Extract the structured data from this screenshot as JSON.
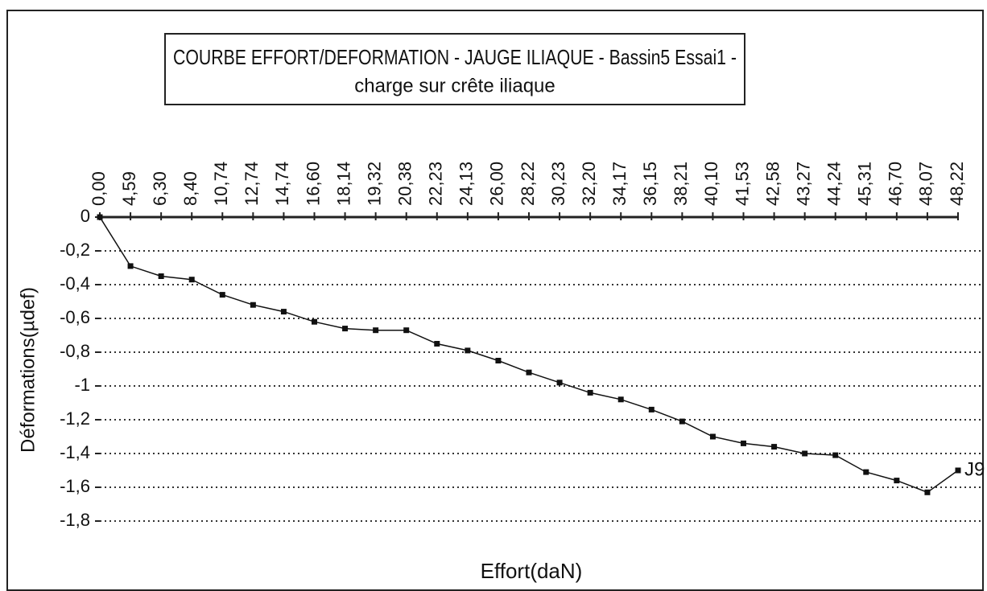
{
  "chart_data": {
    "type": "line",
    "title": "COURBE EFFORT/DEFORMATION - JAUGE ILIAQUE - Bassin5 Essai1 -",
    "subtitle": "charge sur crête iliaque",
    "x_label": "Effort(daN)",
    "y_label": "Déformations(µdef)",
    "categories": [
      "0,00",
      "4,59",
      "6,30",
      "8,40",
      "10,74",
      "12,74",
      "14,74",
      "16,60",
      "18,14",
      "19,32",
      "20,38",
      "22,23",
      "24,13",
      "26,00",
      "28,22",
      "30,23",
      "32,20",
      "34,17",
      "36,15",
      "38,21",
      "40,10",
      "41,53",
      "42,58",
      "43,27",
      "44,24",
      "45,31",
      "46,70",
      "48,07",
      "48,22"
    ],
    "series": [
      {
        "name": "J9",
        "color": "#111111",
        "values": [
          0,
          -0.29,
          -0.35,
          -0.37,
          -0.46,
          -0.52,
          -0.56,
          -0.62,
          -0.66,
          -0.67,
          -0.67,
          -0.75,
          -0.79,
          -0.85,
          -0.92,
          -0.98,
          -1.04,
          -1.08,
          -1.14,
          -1.21,
          -1.3,
          -1.34,
          -1.36,
          -1.4,
          -1.41,
          -1.51,
          -1.56,
          -1.63,
          -1.5
        ]
      }
    ],
    "ylim": [
      -1.8,
      0
    ],
    "yticks": [
      0,
      {
        "value": -0.2,
        "label": "-0,2"
      },
      {
        "value": -0.4,
        "label": "-0,4"
      },
      {
        "value": -0.6,
        "label": "-0,6"
      },
      {
        "value": -0.8,
        "label": "-0,8"
      },
      -1,
      {
        "value": -1.2,
        "label": "-1,2"
      },
      {
        "value": -1.4,
        "label": "-1,4"
      },
      {
        "value": -1.6,
        "label": "-1,6"
      },
      {
        "value": -1.8,
        "label": "-1,8"
      }
    ],
    "grid": true
  }
}
